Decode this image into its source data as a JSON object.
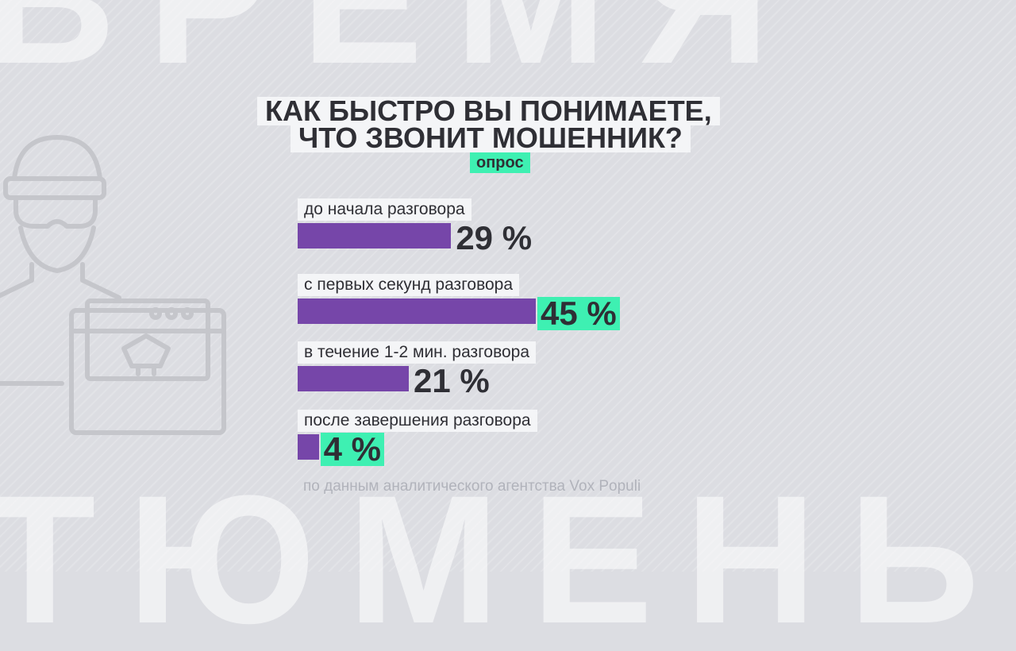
{
  "colors": {
    "background": "#dcdde2",
    "bar": "#7646a9",
    "accent": "#3ef0b2",
    "text": "#2f2f35",
    "label_bg": "#f4f5f7",
    "source_text": "#b1b3bb"
  },
  "background_text": {
    "top": "ВРЕМЯ",
    "bottom": "ТЮМЕНЬ"
  },
  "illustration": {
    "icon": "scammer-at-computer-icon"
  },
  "chart_data": {
    "type": "bar",
    "orientation": "horizontal",
    "title_lines": [
      "КАК БЫСТРО ВЫ ПОНИМАЕТЕ,",
      "ЧТО ЗВОНИТ МОШЕННИК?"
    ],
    "subtitle": "опрос",
    "unit": "%",
    "categories": [
      "до начала разговора",
      "с первых секунд разговора",
      "в течение 1-2 мин. разговора",
      "после завершения разговора"
    ],
    "values": [
      29,
      45,
      21,
      4
    ],
    "value_labels": [
      "29 %",
      "45 %",
      "21 %",
      "4 %"
    ],
    "highlighted": [
      false,
      true,
      false,
      true
    ],
    "source": "по данным аналитического агентства Vox Populi"
  }
}
